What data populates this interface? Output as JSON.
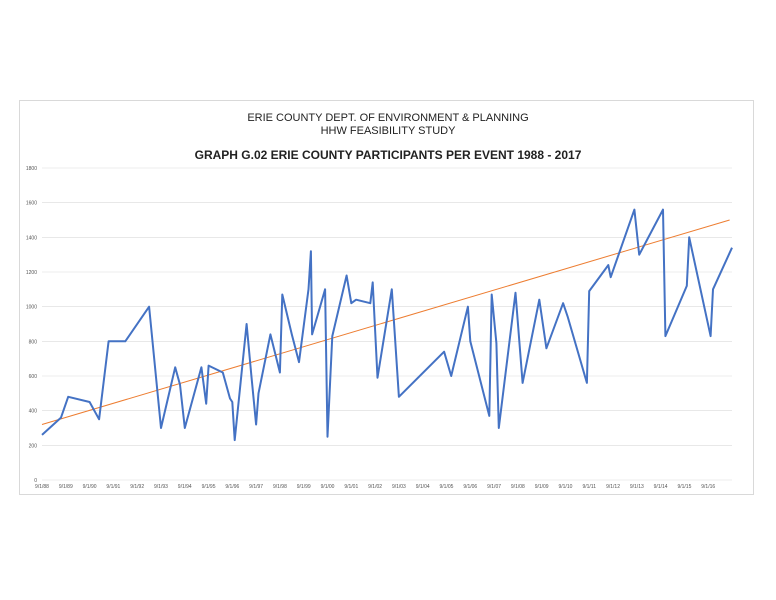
{
  "header": {
    "org": "ERIE COUNTY DEPT. OF ENVIRONMENT & PLANNING",
    "study": "HHW FEASIBILITY STUDY"
  },
  "chart_data": {
    "type": "line",
    "title": "GRAPH G.02 ERIE COUNTY PARTICIPANTS PER EVENT 1988 - 2017",
    "xlabel": "",
    "ylabel": "",
    "ylim": [
      0,
      1800
    ],
    "yticks": [
      0,
      200,
      400,
      600,
      800,
      1000,
      1200,
      1400,
      1600,
      1800
    ],
    "xticks": [
      "9/1/88",
      "9/1/89",
      "9/1/90",
      "9/1/91",
      "9/1/92",
      "9/1/93",
      "9/1/94",
      "9/1/95",
      "9/1/96",
      "9/1/97",
      "9/1/98",
      "9/1/99",
      "9/1/00",
      "9/1/01",
      "9/1/02",
      "9/1/03",
      "9/1/04",
      "9/1/05",
      "9/1/06",
      "9/1/07",
      "9/1/08",
      "9/1/09",
      "9/1/10",
      "9/1/11",
      "9/1/12",
      "9/1/13",
      "9/1/14",
      "9/1/15",
      "9/1/16"
    ],
    "grid": true,
    "legend": "none",
    "colors": {
      "series": "#4472c4",
      "trend": "#ed7d31",
      "grid": "#d9d9d9"
    },
    "series": [
      {
        "values": [
          [
            1988.0,
            260
          ],
          [
            1988.8,
            360
          ],
          [
            1989.1,
            480
          ],
          [
            1990.0,
            450
          ],
          [
            1990.4,
            350
          ],
          [
            1990.8,
            800
          ],
          [
            1991.5,
            800
          ],
          [
            1992.5,
            1000
          ],
          [
            1993.0,
            300
          ],
          [
            1993.6,
            650
          ],
          [
            1993.8,
            550
          ],
          [
            1994.0,
            300
          ],
          [
            1994.7,
            650
          ],
          [
            1994.9,
            440
          ],
          [
            1995.0,
            660
          ],
          [
            1995.6,
            620
          ],
          [
            1995.9,
            470
          ],
          [
            1996.0,
            450
          ],
          [
            1996.1,
            230
          ],
          [
            1996.6,
            900
          ],
          [
            1996.8,
            600
          ],
          [
            1997.0,
            320
          ],
          [
            1997.1,
            500
          ],
          [
            1997.6,
            840
          ],
          [
            1998.0,
            620
          ],
          [
            1998.1,
            1070
          ],
          [
            1998.5,
            840
          ],
          [
            1998.8,
            680
          ],
          [
            1999.2,
            1100
          ],
          [
            1999.3,
            1320
          ],
          [
            1999.35,
            840
          ],
          [
            1999.9,
            1100
          ],
          [
            2000.0,
            250
          ],
          [
            2000.2,
            830
          ],
          [
            2000.8,
            1180
          ],
          [
            2001.0,
            1020
          ],
          [
            2001.2,
            1040
          ],
          [
            2001.8,
            1020
          ],
          [
            2001.9,
            1140
          ],
          [
            2002.1,
            590
          ],
          [
            2002.7,
            1100
          ],
          [
            2002.8,
            900
          ],
          [
            2003.0,
            480
          ],
          [
            2004.9,
            740
          ],
          [
            2005.2,
            600
          ],
          [
            2005.9,
            1000
          ],
          [
            2006.0,
            800
          ],
          [
            2006.8,
            370
          ],
          [
            2006.9,
            1070
          ],
          [
            2007.1,
            790
          ],
          [
            2007.2,
            300
          ],
          [
            2007.9,
            1080
          ],
          [
            2008.2,
            560
          ],
          [
            2008.9,
            1040
          ],
          [
            2009.2,
            760
          ],
          [
            2009.9,
            1020
          ],
          [
            2010.1,
            940
          ],
          [
            2010.9,
            560
          ],
          [
            2011.0,
            1090
          ],
          [
            2011.8,
            1240
          ],
          [
            2011.9,
            1170
          ],
          [
            2012.9,
            1560
          ],
          [
            2013.1,
            1300
          ],
          [
            2014.1,
            1560
          ],
          [
            2014.2,
            830
          ],
          [
            2015.1,
            1120
          ],
          [
            2015.2,
            1400
          ],
          [
            2016.1,
            830
          ],
          [
            2016.2,
            1100
          ],
          [
            2017.0,
            1340
          ]
        ]
      }
    ],
    "trendline": [
      [
        1988.0,
        320
      ],
      [
        2016.9,
        1500
      ]
    ]
  }
}
